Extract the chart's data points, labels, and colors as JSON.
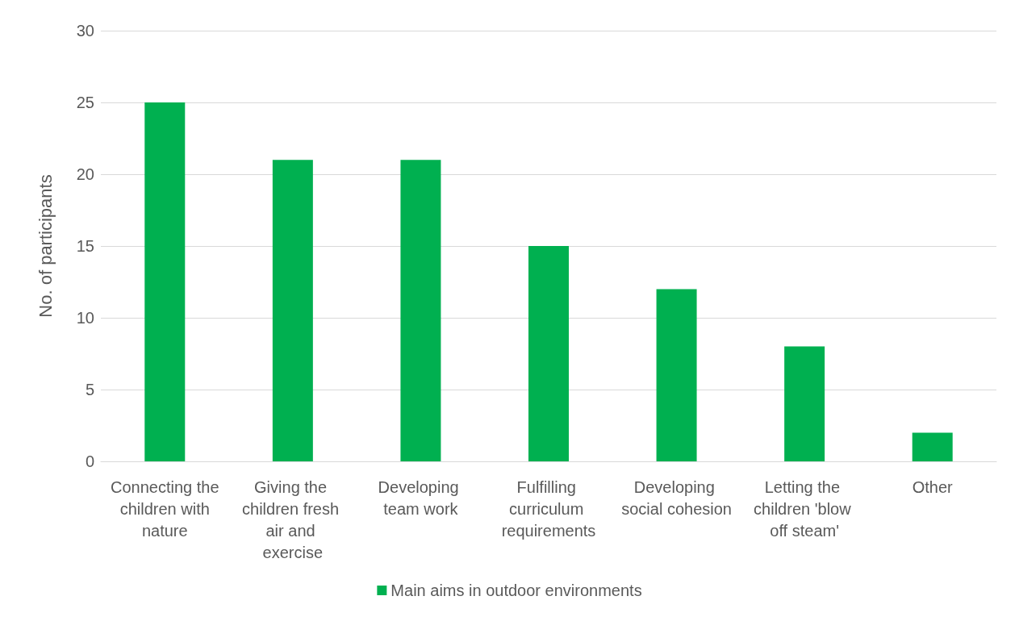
{
  "chart_data": {
    "type": "bar",
    "categories": [
      "Connecting the children with nature",
      "Giving the children fresh air and exercise",
      "Developing team work",
      "Fulfilling curriculum requirements",
      "Developing social cohesion",
      "Letting the children 'blow off steam'",
      "Other"
    ],
    "series": [
      {
        "name": "Main aims in outdoor environments",
        "color": "#00b050",
        "values": [
          25,
          21,
          21,
          15,
          12,
          8,
          2
        ]
      }
    ],
    "ylabel": "No. of participants",
    "ylim": [
      0,
      30
    ],
    "yticks": [
      0,
      5,
      10,
      15,
      20,
      25,
      30
    ],
    "grid": "y",
    "legend": "bottom"
  }
}
